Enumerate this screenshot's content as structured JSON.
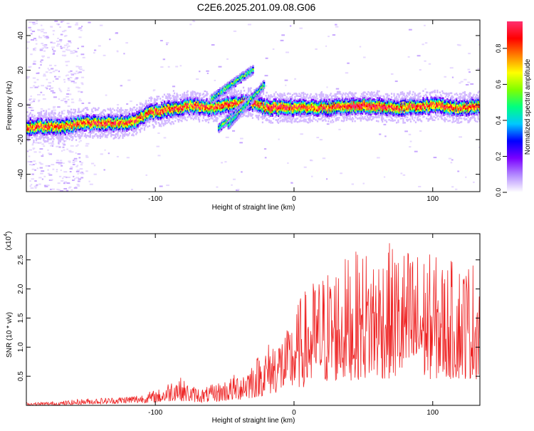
{
  "title": "C2E6.2025.201.09.08.G06",
  "chart_data": [
    {
      "type": "heatmap",
      "xlabel": "Height of straight line (km)",
      "ylabel": "Frequency (Hz)",
      "xlim": [
        -193,
        134
      ],
      "ylim": [
        -50,
        49
      ],
      "xticks": [
        -100,
        0,
        100
      ],
      "yticks": [
        -40,
        -20,
        0,
        20,
        40
      ],
      "colorbar": {
        "label": "Normalized spectral amplitude",
        "range": [
          0,
          0.95
        ],
        "ticks": [
          0.0,
          0.2,
          0.4,
          0.6,
          0.8
        ],
        "tick_labels": [
          "0.0",
          "0.2",
          "0.4",
          "0.6",
          "0.8"
        ]
      },
      "ridge": {
        "description_points_x": [
          -193,
          -170,
          -150,
          -130,
          -115,
          -105,
          -90,
          -75,
          -60,
          -45,
          -30,
          -22,
          0,
          25,
          50,
          75,
          100,
          120,
          134
        ],
        "description_points_y": [
          -12,
          -12,
          -10,
          -10,
          -9,
          -4,
          -2,
          0,
          -1,
          1,
          2,
          -1,
          -1,
          -1,
          0,
          -1,
          0,
          -1,
          0
        ]
      },
      "branches": [
        {
          "x": [
            -55,
            -25
          ],
          "y": [
            -13,
            8
          ]
        },
        {
          "x": [
            -48,
            -22
          ],
          "y": [
            -11,
            12
          ]
        },
        {
          "x": [
            -60,
            -30
          ],
          "y": [
            4,
            21
          ]
        }
      ],
      "colors": [
        "#ffffff",
        "#b48cff",
        "#7a00ff",
        "#0000ff",
        "#00c8ff",
        "#00ff80",
        "#80ff00",
        "#ffff00",
        "#ff8000",
        "#ff0000",
        "#ff3070"
      ]
    },
    {
      "type": "line",
      "xlabel": "Height of straight line (km)",
      "ylabel": "SNR (10 * v/v)",
      "exponent_label": "(x10",
      "exponent_power": "4",
      "exponent_close": ")",
      "xlim": [
        -193,
        134
      ],
      "ylim": [
        0,
        2.95
      ],
      "xticks": [
        -100,
        0,
        100
      ],
      "yticks": [
        0.5,
        1.0,
        1.5,
        2.0,
        2.5
      ],
      "ytick_labels": [
        "0.5",
        "1.0",
        "1.5",
        "2.0",
        "2.5"
      ],
      "color": "#ee2222",
      "envelope": {
        "x": [
          -193,
          -170,
          -150,
          -130,
          -110,
          -95,
          -85,
          -75,
          -65,
          -55,
          -45,
          -35,
          -25,
          -15,
          -5,
          5,
          15,
          30,
          50,
          70,
          90,
          110,
          134
        ],
        "low": [
          0.0,
          0.0,
          0.02,
          0.03,
          0.04,
          0.05,
          0.08,
          0.06,
          0.05,
          0.06,
          0.08,
          0.1,
          0.15,
          0.2,
          0.25,
          0.3,
          0.35,
          0.4,
          0.45,
          0.45,
          0.45,
          0.45,
          0.45
        ],
        "high": [
          0.05,
          0.07,
          0.12,
          0.14,
          0.2,
          0.3,
          0.55,
          0.35,
          0.3,
          0.4,
          0.5,
          0.7,
          0.9,
          1.2,
          1.3,
          1.9,
          2.2,
          2.5,
          2.7,
          2.8,
          2.7,
          2.5,
          2.55
        ]
      }
    }
  ]
}
